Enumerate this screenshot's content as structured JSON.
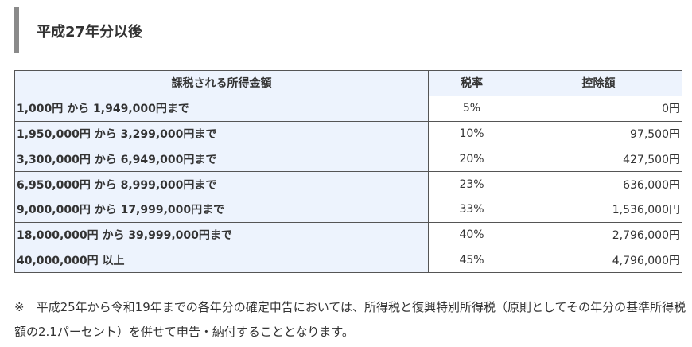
{
  "heading": "平成27年分以後",
  "table": {
    "headers": [
      "課税される所得金額",
      "税率",
      "控除額"
    ],
    "rows": [
      {
        "range": "1,000円 から 1,949,000円まで",
        "rate": "5%",
        "deduction": "0円"
      },
      {
        "range": "1,950,000円 から 3,299,000円まで",
        "rate": "10%",
        "deduction": "97,500円"
      },
      {
        "range": "3,300,000円 から 6,949,000円まで",
        "rate": "20%",
        "deduction": "427,500円"
      },
      {
        "range": "6,950,000円 から 8,999,000円まで",
        "rate": "23%",
        "deduction": "636,000円"
      },
      {
        "range": "9,000,000円 から 17,999,000円まで",
        "rate": "33%",
        "deduction": "1,536,000円"
      },
      {
        "range": "18,000,000円 から 39,999,000円まで",
        "rate": "40%",
        "deduction": "2,796,000円"
      },
      {
        "range": "40,000,000円 以上",
        "rate": "45%",
        "deduction": "4,796,000円"
      }
    ]
  },
  "note": "※　平成25年から令和19年までの各年分の確定申告においては、所得税と復興特別所得税（原則としてその年分の基準所得税額の2.1パーセント）を併せて申告・納付することとなります。"
}
